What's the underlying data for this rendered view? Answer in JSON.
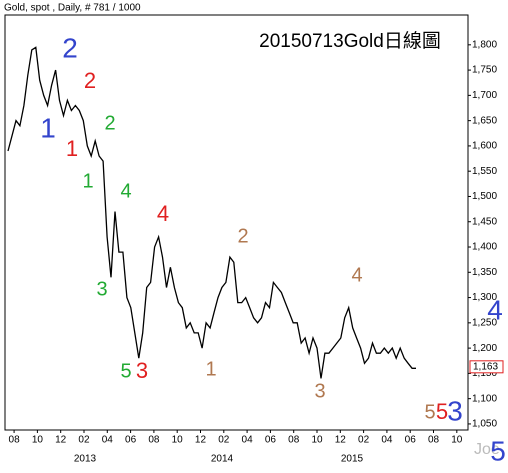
{
  "chart_data": {
    "type": "line",
    "header": "Gold, spot , Daily, # 781 / 1000",
    "title": "20150713Gold日線圖",
    "watermark": "Joe",
    "color": "#000000",
    "xlim": [
      -0.39,
      19.48
    ],
    "ylim": [
      1038,
      1859
    ],
    "xticks": [
      {
        "value": 0,
        "label": "08"
      },
      {
        "value": 1,
        "label": "10"
      },
      {
        "value": 2,
        "label": "12"
      },
      {
        "value": 3,
        "label": "02"
      },
      {
        "value": 4,
        "label": "04"
      },
      {
        "value": 5,
        "label": "06"
      },
      {
        "value": 6,
        "label": "08"
      },
      {
        "value": 7,
        "label": "10"
      },
      {
        "value": 8,
        "label": "12"
      },
      {
        "value": 9,
        "label": "02"
      },
      {
        "value": 10,
        "label": "04"
      },
      {
        "value": 11,
        "label": "06"
      },
      {
        "value": 12,
        "label": "08"
      },
      {
        "value": 13,
        "label": "10"
      },
      {
        "value": 14,
        "label": "12"
      },
      {
        "value": 15,
        "label": "02"
      },
      {
        "value": 16,
        "label": "04"
      },
      {
        "value": 17,
        "label": "06"
      },
      {
        "value": 18,
        "label": "08"
      },
      {
        "value": 19,
        "label": "10"
      }
    ],
    "years": [
      "2013",
      "2014",
      "2015"
    ],
    "yticks": [
      {
        "value": 1050,
        "label": "1,050"
      },
      {
        "value": 1100,
        "label": "1,100"
      },
      {
        "value": 1150,
        "label": "1,150"
      },
      {
        "value": 1200,
        "label": "1,200"
      },
      {
        "value": 1250,
        "label": "1,250"
      },
      {
        "value": 1300,
        "label": "1,300"
      },
      {
        "value": 1350,
        "label": "1,350"
      },
      {
        "value": 1400,
        "label": "1,400"
      },
      {
        "value": 1450,
        "label": "1,450"
      },
      {
        "value": 1500,
        "label": "1,500"
      },
      {
        "value": 1550,
        "label": "1,550"
      },
      {
        "value": 1600,
        "label": "1,600"
      },
      {
        "value": 1650,
        "label": "1,650"
      },
      {
        "value": 1700,
        "label": "1,700"
      },
      {
        "value": 1750,
        "label": "1,750"
      },
      {
        "value": 1800,
        "label": "1,800"
      }
    ],
    "last_price": {
      "value": 1163,
      "label": "1,163"
    },
    "x": [
      -0.26,
      -0.09,
      0.08,
      0.25,
      0.42,
      0.59,
      0.76,
      0.93,
      1.1,
      1.27,
      1.44,
      1.61,
      1.78,
      1.95,
      2.12,
      2.29,
      2.46,
      2.63,
      2.8,
      2.97,
      3.14,
      3.31,
      3.48,
      3.65,
      3.82,
      3.99,
      4.16,
      4.33,
      4.5,
      4.67,
      4.84,
      5.01,
      5.18,
      5.35,
      5.52,
      5.69,
      5.86,
      6.03,
      6.2,
      6.37,
      6.54,
      6.71,
      6.88,
      7.05,
      7.22,
      7.39,
      7.56,
      7.73,
      7.9,
      8.07,
      8.24,
      8.41,
      8.58,
      8.75,
      8.92,
      9.09,
      9.26,
      9.43,
      9.6,
      9.77,
      9.94,
      10.11,
      10.28,
      10.45,
      10.62,
      10.79,
      10.96,
      11.13,
      11.3,
      11.47,
      11.64,
      11.81,
      11.98,
      12.15,
      12.32,
      12.49,
      12.66,
      12.83,
      13.0,
      13.17,
      13.34,
      13.51,
      13.68,
      13.85,
      14.02,
      14.19,
      14.36,
      14.53,
      14.7,
      14.87,
      15.04,
      15.21,
      15.38,
      15.55,
      15.72,
      15.89,
      16.06,
      16.23,
      16.4,
      16.57,
      16.74,
      16.91,
      17.08,
      17.25
    ],
    "values": [
      1590,
      1620,
      1650,
      1640,
      1680,
      1740,
      1790,
      1795,
      1730,
      1700,
      1680,
      1720,
      1750,
      1690,
      1660,
      1690,
      1670,
      1680,
      1670,
      1650,
      1600,
      1580,
      1610,
      1580,
      1570,
      1420,
      1340,
      1470,
      1390,
      1390,
      1300,
      1280,
      1230,
      1180,
      1230,
      1320,
      1330,
      1400,
      1420,
      1380,
      1320,
      1360,
      1320,
      1290,
      1280,
      1240,
      1250,
      1230,
      1230,
      1200,
      1250,
      1240,
      1270,
      1300,
      1320,
      1330,
      1380,
      1370,
      1290,
      1290,
      1300,
      1280,
      1260,
      1250,
      1260,
      1290,
      1280,
      1330,
      1320,
      1310,
      1290,
      1270,
      1250,
      1250,
      1210,
      1220,
      1190,
      1220,
      1200,
      1140,
      1190,
      1190,
      1200,
      1210,
      1220,
      1260,
      1280,
      1240,
      1220,
      1200,
      1170,
      1180,
      1210,
      1190,
      1190,
      1200,
      1190,
      1200,
      1180,
      1200,
      1180,
      1170,
      1160,
      1160
    ],
    "annotations": [
      {
        "text": "2",
        "color": "#3344cc"
      },
      {
        "text": "1",
        "color": "#3344cc"
      },
      {
        "text": "2",
        "color": "#e02020"
      },
      {
        "text": "1",
        "color": "#e02020"
      },
      {
        "text": "2",
        "color": "#22aa33"
      },
      {
        "text": "1",
        "color": "#22aa33"
      },
      {
        "text": "4",
        "color": "#22aa33"
      },
      {
        "text": "3",
        "color": "#22aa33"
      },
      {
        "text": "4",
        "color": "#e02020"
      },
      {
        "text": "2",
        "color": "#b07850"
      },
      {
        "text": "5",
        "color": "#22aa33"
      },
      {
        "text": "3",
        "color": "#e02020"
      },
      {
        "text": "1",
        "color": "#b07850"
      },
      {
        "text": "4",
        "color": "#b07850"
      },
      {
        "text": "3",
        "color": "#b07850"
      },
      {
        "text": "5",
        "color": "#b07850"
      },
      {
        "text": "5",
        "color": "#e02020"
      },
      {
        "text": "3",
        "color": "#3344cc"
      },
      {
        "text": "4",
        "color": "#3344cc"
      },
      {
        "text": "5",
        "color": "#3344cc"
      }
    ]
  }
}
